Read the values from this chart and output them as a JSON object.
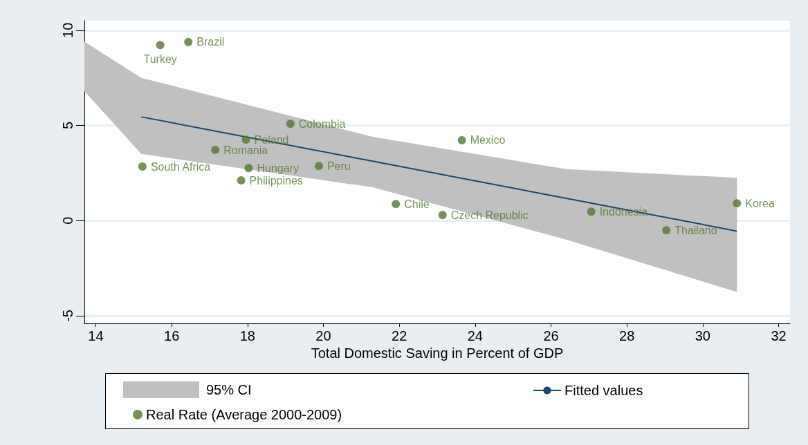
{
  "chart_data": {
    "type": "scatter",
    "xlabel": "Total Domestic Saving in Percent of GDP",
    "xlim": [
      13.7,
      32.3
    ],
    "xticks": [
      14,
      16,
      18,
      20,
      22,
      24,
      26,
      28,
      30,
      32
    ],
    "ylim": [
      -5.4,
      10.5
    ],
    "yticks": [
      -5,
      0,
      5,
      10
    ],
    "grid": "y",
    "legend": "bottom",
    "marker": "circle",
    "annotations": [
      "95% CI"
    ],
    "series": [
      {
        "name": "Fitted values",
        "type": "line",
        "color": "#1a476f",
        "marker": "none",
        "x": [
          13.7,
          15.2,
          21.3,
          26.4,
          30.9
        ],
        "values": [
          null,
          5.45,
          3.12,
          1.17,
          -0.55
        ],
        "lower": [
          6.8,
          3.5,
          1.75,
          -1.0,
          -3.75
        ],
        "upper": [
          9.4,
          7.5,
          4.4,
          2.7,
          2.25
        ]
      },
      {
        "name": "Real Rate (Average 2000-2009)",
        "color": "#55752f",
        "x": [
          15.7,
          16.44,
          19.13,
          17.96,
          17.15,
          15.23,
          18.03,
          19.88,
          17.83,
          23.65,
          21.91,
          23.14,
          27.06,
          29.04,
          30.9
        ],
        "values": [
          9.22,
          9.38,
          5.09,
          4.25,
          3.71,
          2.84,
          2.76,
          2.87,
          2.11,
          4.22,
          0.87,
          0.29,
          0.47,
          -0.51,
          0.91
        ],
        "value_labels": [
          "Turkey",
          "Brazil",
          "Colombia",
          "Poland",
          "Romania",
          "South Africa",
          "Hungary",
          "Peru",
          "Philippines",
          "Mexico",
          "Chile",
          "Czech Republic",
          "Indonesia",
          "Thailand",
          "Korea"
        ]
      }
    ]
  }
}
